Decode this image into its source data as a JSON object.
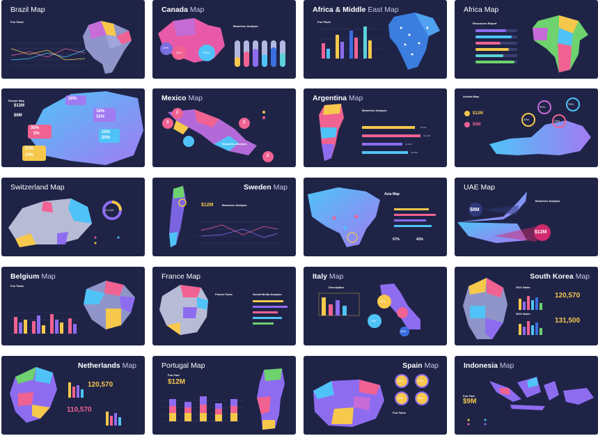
{
  "slides": [
    {
      "id": "brazil",
      "title_bold": "",
      "title_light": "Brazil Map",
      "label": "Fun Facts"
    },
    {
      "id": "canada",
      "title_bold": "Canada",
      "title_light": " Map",
      "label": "Branches Analysis"
    },
    {
      "id": "africa-me",
      "title_bold": "Africa & Middle",
      "title_light": " East Map",
      "label": "Fun Facts"
    },
    {
      "id": "africa",
      "title_bold": "",
      "title_light": "Africa Map",
      "label": "Resources Report"
    },
    {
      "id": "europe",
      "title_bold": "",
      "title_light": "",
      "label": "Europe Map"
    },
    {
      "id": "mexico",
      "title_bold": "Mexico",
      "title_light": " Map",
      "label": "Branches Analysis"
    },
    {
      "id": "argentina",
      "title_bold": "Argentina",
      "title_light": " Map",
      "label": "Branches Analysis"
    },
    {
      "id": "austria",
      "title_bold": "",
      "title_light": "",
      "label": "Austria Map"
    },
    {
      "id": "switzerland",
      "title_bold": "",
      "title_light": "Switzerland Map",
      "label": ""
    },
    {
      "id": "sweden",
      "title_bold": "Sweden",
      "title_light": " Map",
      "label": "Branches Analysis"
    },
    {
      "id": "asia",
      "title_bold": "",
      "title_light": "",
      "label": "Asia Map"
    },
    {
      "id": "uae",
      "title_bold": "",
      "title_light": "UAE Map",
      "label": "Branches Analysis"
    },
    {
      "id": "belgium",
      "title_bold": "Belgium",
      "title_light": " Map",
      "label": "Fun Facts"
    },
    {
      "id": "france",
      "title_bold": "",
      "title_light": "France Map",
      "label": "France Facts"
    },
    {
      "id": "italy",
      "title_bold": "Italy",
      "title_light": " Map",
      "label": "Description"
    },
    {
      "id": "south-korea",
      "title_bold": "South Korea",
      "title_light": " Map",
      "label": "2021 Sales"
    },
    {
      "id": "netherlands",
      "title_bold": "Netherlands",
      "title_light": " Map",
      "label": ""
    },
    {
      "id": "portugal",
      "title_bold": "",
      "title_light": "Portugal Map",
      "label": "Fun Fact"
    },
    {
      "id": "spain",
      "title_bold": "Spain",
      "title_light": " Map",
      "label": "Fun Facts"
    },
    {
      "id": "indonesia",
      "title_bold": "Indonesia",
      "title_light": " Map",
      "label": "Fun Fact"
    }
  ],
  "values": {
    "canada_pcts": [
      "20%",
      "50%",
      "100%"
    ],
    "europe_big": [
      "$12M",
      "$6M"
    ],
    "europe_pcts": [
      "20%",
      "18%",
      "32%",
      "35%",
      "5%",
      "15%",
      "25%",
      "27%",
      "13%"
    ],
    "mexico_nums": [
      "2",
      "3",
      "3",
      "2"
    ],
    "argentina_pcts": [
      "25.5%",
      "51.13%",
      "11.24%",
      "15.25%"
    ],
    "austria_big": [
      "$12M",
      "$6M"
    ],
    "austria_pcts": [
      "90%",
      "75%",
      "25%",
      "33%"
    ],
    "switzerland_center": "12,3,00",
    "sweden_big": "$12M",
    "asia_pcts": [
      "57%",
      "43%"
    ],
    "uae_big": [
      "$8M",
      "$12M"
    ],
    "korea_big": [
      "120,570",
      "131,500"
    ],
    "korea_sub": "2022 Sales",
    "netherlands_big": [
      "120,570",
      "110,570"
    ],
    "portugal_big": "$12M",
    "spain_pcts": [
      "53%",
      "50%",
      "25%",
      "75%"
    ],
    "italy_pcts": [
      "60%",
      "70%",
      "40%"
    ],
    "indonesia_big": "$9M",
    "france_sub": "Social Media Analysis"
  },
  "colors": {
    "slide_bg": "#1f2447",
    "accent_yellow": "#f6c84c",
    "accent_pink": "#f06292",
    "accent_blue": "#4fc3f7",
    "accent_purple": "#8e6cf0"
  }
}
